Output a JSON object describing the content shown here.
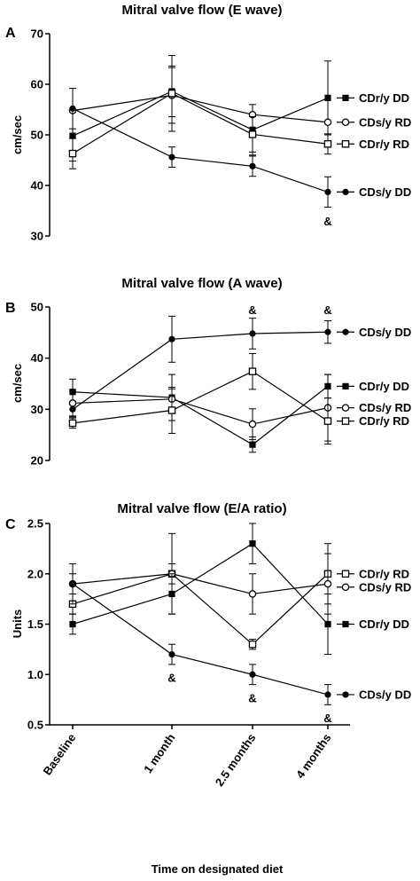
{
  "x_axis": {
    "categories": [
      "Baseline",
      "1 month",
      "2.5 months",
      "4 months"
    ],
    "title": "Time on designated diet"
  },
  "chart_data": [
    {
      "type": "line",
      "panel": "A",
      "title": "Mitral valve flow (E wave)",
      "ylabel": "cm/sec",
      "ylim": [
        30,
        70
      ],
      "yticks": [
        30,
        40,
        50,
        60,
        70
      ],
      "categories": [
        "Baseline",
        "1 month",
        "2.5 months",
        "4 months"
      ],
      "series": [
        {
          "name": "CDr/y DD",
          "marker": "square-filled",
          "values": [
            49.8,
            58.6,
            51.0,
            57.3
          ],
          "errors": [
            5.0,
            5.0,
            5.0,
            7.3
          ]
        },
        {
          "name": "CDs/y RD",
          "marker": "circle-open",
          "values": [
            54.8,
            57.8,
            54.0,
            52.5
          ],
          "errors": [
            0,
            5.5,
            0,
            0
          ]
        },
        {
          "name": "CDr/y RD",
          "marker": "square-open",
          "values": [
            46.3,
            58.2,
            50.1,
            48.2
          ],
          "errors": [
            3.0,
            7.5,
            3.5,
            2.0
          ]
        },
        {
          "name": "CDs/y DD",
          "marker": "circle-filled",
          "values": [
            55.2,
            45.6,
            43.8,
            38.7
          ],
          "errors": [
            4.0,
            2.0,
            2.0,
            3.0
          ]
        }
      ],
      "annotations": [
        {
          "text": "&",
          "category": "4 months",
          "value": 33.0
        }
      ]
    },
    {
      "type": "line",
      "panel": "B",
      "title": "Mitral valve flow (A wave)",
      "ylabel": "cm/sec",
      "ylim": [
        20,
        50
      ],
      "yticks": [
        20,
        30,
        40,
        50
      ],
      "categories": [
        "Baseline",
        "1 month",
        "2.5 months",
        "4 months"
      ],
      "series": [
        {
          "name": "CDs/y DD",
          "marker": "circle-filled",
          "values": [
            30.0,
            43.7,
            44.8,
            45.1
          ],
          "errors": [
            1.5,
            4.5,
            3.0,
            2.2
          ]
        },
        {
          "name": "CDr/y DD",
          "marker": "square-filled",
          "values": [
            33.4,
            32.3,
            23.1,
            34.5
          ],
          "errors": [
            2.5,
            4.5,
            1.5,
            2.3
          ]
        },
        {
          "name": "CDs/y RD",
          "marker": "circle-open",
          "values": [
            31.2,
            32.0,
            27.1,
            30.3
          ],
          "errors": [
            2.5,
            2.0,
            3.0,
            6.5
          ]
        },
        {
          "name": "CDr/y RD",
          "marker": "square-open",
          "values": [
            27.3,
            29.8,
            37.4,
            27.7
          ],
          "errors": [
            1.0,
            4.5,
            3.5,
            4.5
          ]
        }
      ],
      "annotations": [
        {
          "text": "&",
          "category": "2.5 months",
          "value": 49.5
        },
        {
          "text": "&",
          "category": "4 months",
          "value": 49.5
        }
      ]
    },
    {
      "type": "line",
      "panel": "C",
      "title": "Mitral valve flow (E/A ratio)",
      "ylabel": "Units",
      "ylim": [
        0.5,
        2.5
      ],
      "yticks": [
        0.5,
        1.0,
        1.5,
        2.0,
        2.5
      ],
      "categories": [
        "Baseline",
        "1 month",
        "2.5 months",
        "4 months"
      ],
      "series": [
        {
          "name": "CDr/y RD",
          "marker": "square-open",
          "values": [
            1.7,
            2.0,
            1.3,
            2.0
          ],
          "errors": [
            0.1,
            0.1,
            0.05,
            0.3
          ]
        },
        {
          "name": "CDs/y RD",
          "marker": "circle-open",
          "values": [
            1.9,
            2.0,
            1.8,
            1.9
          ],
          "errors": [
            0.2,
            0.4,
            0.2,
            0.3
          ]
        },
        {
          "name": "CDr/y DD",
          "marker": "square-filled",
          "values": [
            1.5,
            1.8,
            2.3,
            1.5
          ],
          "errors": [
            0.1,
            0.2,
            0.2,
            0.3
          ]
        },
        {
          "name": "CDs/y DD",
          "marker": "circle-filled",
          "values": [
            1.9,
            1.2,
            1.0,
            0.8
          ],
          "errors": [
            0.1,
            0.1,
            0.1,
            0.1
          ]
        }
      ],
      "annotations": [
        {
          "text": "&",
          "category": "1 month",
          "value": 0.97
        },
        {
          "text": "&",
          "category": "2.5 months",
          "value": 0.77
        },
        {
          "text": "&",
          "category": "4 months",
          "value": 0.57
        }
      ]
    }
  ]
}
